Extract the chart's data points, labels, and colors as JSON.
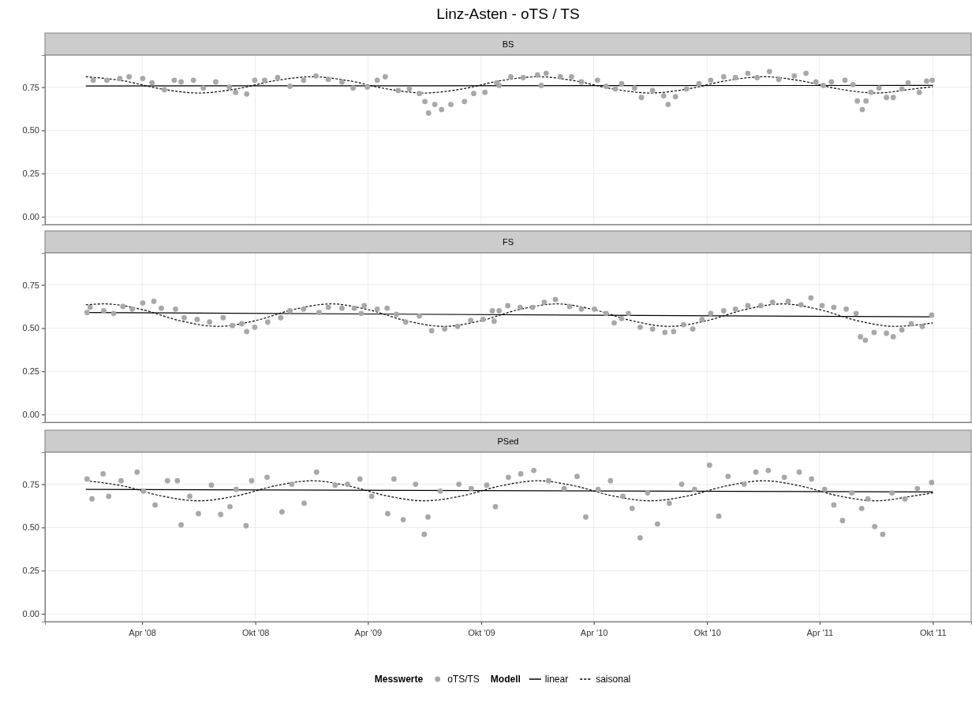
{
  "chart_data": [
    {
      "type": "scatter",
      "title": "Linz-Asten - oTS / TS",
      "subtitle": "BS",
      "xlim": [
        "2007-10-27",
        "2011-12-02"
      ],
      "xticks": [
        {
          "value": "2008-04-01",
          "label": null
        },
        {
          "value": "2008-10-01",
          "label": null
        },
        {
          "value": "2009-04-01",
          "label": null
        },
        {
          "value": "2009-10-01",
          "label": null
        },
        {
          "value": "2010-04-01",
          "label": null
        },
        {
          "value": "2010-10-01",
          "label": null
        },
        {
          "value": "2011-04-01",
          "label": null
        },
        {
          "value": "2011-10-01",
          "label": null
        }
      ],
      "ylim": [
        -0.045,
        0.935
      ],
      "yticks": [
        {
          "value": 0,
          "label": "0.00"
        },
        {
          "value": 0.25,
          "label": "0.25"
        },
        {
          "value": 0.5,
          "label": "0.50"
        },
        {
          "value": 0.75,
          "label": "0.75"
        }
      ],
      "grid": true,
      "tick_labels": "y",
      "series": [
        {
          "marker": "circle",
          "color": "#a8a8a8",
          "x": [
            "2008-01-13",
            "2008-02-04",
            "2008-02-25",
            "2008-03-11",
            "2008-04-02",
            "2008-04-17",
            "2008-05-07",
            "2008-05-23",
            "2008-06-03",
            "2008-06-23",
            "2008-07-09",
            "2008-07-29",
            "2008-08-20",
            "2008-08-30",
            "2008-09-17",
            "2008-09-30",
            "2008-10-16",
            "2008-11-06",
            "2008-11-26",
            "2008-12-18",
            "2009-01-07",
            "2009-01-27",
            "2009-02-18",
            "2009-03-08",
            "2009-03-31",
            "2009-04-16",
            "2009-04-29",
            "2009-05-20",
            "2009-06-07",
            "2009-06-23",
            "2009-07-02",
            "2009-07-08",
            "2009-07-18",
            "2009-07-29",
            "2009-08-13",
            "2009-09-04",
            "2009-09-19",
            "2009-10-07",
            "2009-10-26",
            "2009-10-30",
            "2009-11-18",
            "2009-12-08",
            "2009-12-31",
            "2010-01-06",
            "2010-01-14",
            "2010-02-06",
            "2010-02-24",
            "2010-03-12",
            "2010-04-07",
            "2010-04-21",
            "2010-05-06",
            "2010-05-16",
            "2010-06-06",
            "2010-06-17",
            "2010-07-05",
            "2010-07-23",
            "2010-07-30",
            "2010-08-11",
            "2010-08-29",
            "2010-09-18",
            "2010-10-07",
            "2010-10-28",
            "2010-11-16",
            "2010-12-06",
            "2010-12-21",
            "2011-01-10",
            "2011-01-25",
            "2011-02-19",
            "2011-03-10",
            "2011-03-26",
            "2011-04-07",
            "2011-04-20",
            "2011-05-12",
            "2011-05-25",
            "2011-06-01",
            "2011-06-09",
            "2011-06-15",
            "2011-06-23",
            "2011-07-06",
            "2011-07-18",
            "2011-07-29",
            "2011-08-12",
            "2011-08-22",
            "2011-09-09",
            "2011-09-21",
            "2011-09-30"
          ],
          "values": [
            0.79,
            0.79,
            0.8,
            0.81,
            0.8,
            0.775,
            0.735,
            0.79,
            0.78,
            0.79,
            0.745,
            0.78,
            0.75,
            0.72,
            0.71,
            0.79,
            0.79,
            0.805,
            0.755,
            0.79,
            0.815,
            0.795,
            0.78,
            0.745,
            0.75,
            0.79,
            0.81,
            0.73,
            0.74,
            0.713,
            0.667,
            0.6,
            0.65,
            0.62,
            0.65,
            0.667,
            0.713,
            0.72,
            0.775,
            0.76,
            0.81,
            0.805,
            0.82,
            0.76,
            0.83,
            0.81,
            0.81,
            0.78,
            0.79,
            0.755,
            0.74,
            0.77,
            0.745,
            0.69,
            0.73,
            0.7,
            0.65,
            0.695,
            0.74,
            0.77,
            0.79,
            0.81,
            0.805,
            0.83,
            0.805,
            0.84,
            0.795,
            0.815,
            0.83,
            0.78,
            0.76,
            0.78,
            0.79,
            0.765,
            0.67,
            0.62,
            0.67,
            0.72,
            0.745,
            0.69,
            0.69,
            0.74,
            0.775,
            0.72,
            0.785,
            0.79
          ]
        },
        {
          "type": "line",
          "color": "#000000",
          "line_style": "solid",
          "x": [
            "2008-01-01",
            "2011-10-01"
          ],
          "values": [
            0.757,
            0.76
          ]
        },
        {
          "type": "line",
          "color": "#000000",
          "line_style": "dashed",
          "x": [
            "2008-01-01",
            "2008-03-01",
            "2008-05-01",
            "2008-07-01",
            "2008-09-01",
            "2008-11-01",
            "2009-01-01",
            "2009-03-01",
            "2009-05-01",
            "2009-07-01",
            "2009-09-01",
            "2009-11-01",
            "2010-01-01",
            "2010-03-01",
            "2010-05-01",
            "2010-07-01",
            "2010-09-01",
            "2010-11-01",
            "2011-01-01",
            "2011-03-01",
            "2011-05-01",
            "2011-07-01",
            "2011-09-01",
            "2011-10-01"
          ],
          "values": [
            0.81,
            0.787,
            0.74,
            0.716,
            0.74,
            0.787,
            0.81,
            0.787,
            0.74,
            0.716,
            0.74,
            0.787,
            0.81,
            0.787,
            0.74,
            0.716,
            0.74,
            0.787,
            0.81,
            0.787,
            0.74,
            0.716,
            0.74,
            0.752
          ]
        }
      ]
    },
    {
      "type": "scatter",
      "subtitle": "FS",
      "xlim": [
        "2007-10-27",
        "2011-12-02"
      ],
      "xticks": [
        {
          "value": "2008-04-01",
          "label": null
        },
        {
          "value": "2008-10-01",
          "label": null
        },
        {
          "value": "2009-04-01",
          "label": null
        },
        {
          "value": "2009-10-01",
          "label": null
        },
        {
          "value": "2010-04-01",
          "label": null
        },
        {
          "value": "2010-10-01",
          "label": null
        },
        {
          "value": "2011-04-01",
          "label": null
        },
        {
          "value": "2011-10-01",
          "label": null
        }
      ],
      "ylim": [
        -0.045,
        0.935
      ],
      "yticks": [
        {
          "value": 0,
          "label": "0.00"
        },
        {
          "value": 0.25,
          "label": "0.25"
        },
        {
          "value": 0.5,
          "label": "0.50"
        },
        {
          "value": 0.75,
          "label": "0.75"
        }
      ],
      "grid": true,
      "tick_labels": "y",
      "series": [
        {
          "marker": "circle",
          "color": "#a8a8a8",
          "x": [
            "2008-01-03",
            "2008-01-08",
            "2008-01-30",
            "2008-02-15",
            "2008-03-01",
            "2008-03-16",
            "2008-04-02",
            "2008-04-20",
            "2008-05-02",
            "2008-05-25",
            "2008-06-08",
            "2008-06-29",
            "2008-07-19",
            "2008-08-10",
            "2008-08-25",
            "2008-09-09",
            "2008-09-17",
            "2008-09-30",
            "2008-10-21",
            "2008-11-11",
            "2008-11-26",
            "2008-12-18",
            "2009-01-12",
            "2009-01-27",
            "2009-02-18",
            "2009-03-10",
            "2009-03-21",
            "2009-03-26",
            "2009-04-16",
            "2009-05-02",
            "2009-05-17",
            "2009-06-01",
            "2009-06-23",
            "2009-07-13",
            "2009-08-03",
            "2009-08-24",
            "2009-09-14",
            "2009-10-04",
            "2009-10-19",
            "2009-10-22",
            "2009-10-30",
            "2009-11-13",
            "2009-12-03",
            "2009-12-23",
            "2010-01-11",
            "2010-01-29",
            "2010-02-21",
            "2010-03-12",
            "2010-04-02",
            "2010-04-21",
            "2010-05-04",
            "2010-05-16",
            "2010-05-27",
            "2010-06-15",
            "2010-07-05",
            "2010-07-25",
            "2010-08-08",
            "2010-08-24",
            "2010-09-08",
            "2010-09-23",
            "2010-10-07",
            "2010-10-28",
            "2010-11-16",
            "2010-12-06",
            "2010-12-27",
            "2011-01-15",
            "2011-02-09",
            "2011-03-02",
            "2011-03-18",
            "2011-04-05",
            "2011-04-24",
            "2011-05-14",
            "2011-05-30",
            "2011-06-06",
            "2011-06-14",
            "2011-06-28",
            "2011-07-18",
            "2011-07-29",
            "2011-08-12",
            "2011-08-27",
            "2011-09-14",
            "2011-09-29"
          ],
          "values": [
            0.59,
            0.62,
            0.6,
            0.585,
            0.625,
            0.61,
            0.645,
            0.655,
            0.615,
            0.61,
            0.56,
            0.55,
            0.535,
            0.56,
            0.515,
            0.525,
            0.48,
            0.505,
            0.535,
            0.56,
            0.6,
            0.61,
            0.59,
            0.62,
            0.615,
            0.615,
            0.585,
            0.63,
            0.61,
            0.615,
            0.58,
            0.535,
            0.57,
            0.485,
            0.495,
            0.51,
            0.545,
            0.55,
            0.6,
            0.54,
            0.6,
            0.63,
            0.62,
            0.62,
            0.65,
            0.665,
            0.625,
            0.61,
            0.61,
            0.585,
            0.53,
            0.555,
            0.585,
            0.505,
            0.495,
            0.475,
            0.48,
            0.52,
            0.495,
            0.55,
            0.585,
            0.6,
            0.61,
            0.63,
            0.63,
            0.65,
            0.655,
            0.635,
            0.675,
            0.63,
            0.62,
            0.61,
            0.585,
            0.45,
            0.43,
            0.475,
            0.47,
            0.45,
            0.49,
            0.525,
            0.51,
            0.575
          ]
        },
        {
          "type": "line",
          "color": "#000000",
          "line_style": "solid",
          "x": [
            "2008-01-01",
            "2011-10-01"
          ],
          "values": [
            0.59,
            0.565
          ]
        },
        {
          "type": "line",
          "color": "#000000",
          "line_style": "dashed",
          "x": [
            "2008-01-01",
            "2008-02-01",
            "2008-04-01",
            "2008-06-01",
            "2008-08-01",
            "2008-10-01",
            "2008-12-01",
            "2009-02-01",
            "2009-04-01",
            "2009-06-01",
            "2009-08-01",
            "2009-10-01",
            "2009-12-01",
            "2010-02-01",
            "2010-04-01",
            "2010-06-01",
            "2010-08-01",
            "2010-10-01",
            "2010-12-01",
            "2011-02-01",
            "2011-04-01",
            "2011-06-01",
            "2011-08-01",
            "2011-10-01"
          ],
          "values": [
            0.635,
            0.64,
            0.607,
            0.543,
            0.51,
            0.543,
            0.607,
            0.64,
            0.607,
            0.543,
            0.51,
            0.543,
            0.607,
            0.64,
            0.607,
            0.543,
            0.51,
            0.543,
            0.607,
            0.64,
            0.607,
            0.543,
            0.51,
            0.53
          ]
        }
      ]
    },
    {
      "type": "scatter",
      "subtitle": "PSed",
      "xlim": [
        "2007-10-27",
        "2011-12-02"
      ],
      "xticks": [
        {
          "value": "2008-04-01",
          "label": "Apr '08"
        },
        {
          "value": "2008-10-01",
          "label": "Okt '08"
        },
        {
          "value": "2009-04-01",
          "label": "Apr '09"
        },
        {
          "value": "2009-10-01",
          "label": "Okt '09"
        },
        {
          "value": "2010-04-01",
          "label": "Apr '10"
        },
        {
          "value": "2010-10-01",
          "label": "Okt '10"
        },
        {
          "value": "2011-04-01",
          "label": "Apr '11"
        },
        {
          "value": "2011-10-01",
          "label": "Okt '11"
        }
      ],
      "ylim": [
        -0.045,
        0.935
      ],
      "yticks": [
        {
          "value": 0,
          "label": "0.00"
        },
        {
          "value": 0.25,
          "label": "0.25"
        },
        {
          "value": 0.5,
          "label": "0.50"
        },
        {
          "value": 0.75,
          "label": "0.75"
        }
      ],
      "grid": true,
      "legend": "bottom",
      "legend_title": "Messwerte",
      "annotations": [
        "Modell"
      ],
      "series": [
        {
          "marker": "circle",
          "name": "oTS/TS",
          "color": "#a8a8a8",
          "x": [
            "2008-01-03",
            "2008-01-11",
            "2008-01-29",
            "2008-02-07",
            "2008-02-27",
            "2008-03-24",
            "2008-04-03",
            "2008-04-22",
            "2008-05-12",
            "2008-05-28",
            "2008-06-03",
            "2008-06-17",
            "2008-07-01",
            "2008-07-22",
            "2008-08-06",
            "2008-08-21",
            "2008-08-31",
            "2008-09-16",
            "2008-09-25",
            "2008-10-20",
            "2008-11-13",
            "2008-11-29",
            "2008-12-19",
            "2009-01-08",
            "2009-02-07",
            "2009-02-27",
            "2009-03-19",
            "2009-04-07",
            "2009-05-03",
            "2009-05-13",
            "2009-05-28",
            "2009-06-17",
            "2009-07-01",
            "2009-07-07",
            "2009-07-27",
            "2009-08-26",
            "2009-09-15",
            "2009-10-10",
            "2009-10-24",
            "2009-11-14",
            "2009-12-04",
            "2009-12-25",
            "2010-01-18",
            "2010-02-12",
            "2010-03-05",
            "2010-03-19",
            "2010-04-08",
            "2010-04-28",
            "2010-05-18",
            "2010-06-02",
            "2010-06-15",
            "2010-06-27",
            "2010-07-13",
            "2010-08-01",
            "2010-08-21",
            "2010-09-11",
            "2010-10-05",
            "2010-10-20",
            "2010-11-04",
            "2010-11-30",
            "2010-12-19",
            "2011-01-08",
            "2011-02-03",
            "2011-02-27",
            "2011-03-19",
            "2011-04-09",
            "2011-04-24",
            "2011-05-08",
            "2011-05-23",
            "2011-06-08",
            "2011-06-18",
            "2011-06-29",
            "2011-07-12",
            "2011-07-27",
            "2011-08-17",
            "2011-09-06",
            "2011-09-29"
          ],
          "values": [
            0.78,
            0.665,
            0.81,
            0.68,
            0.77,
            0.82,
            0.71,
            0.63,
            0.77,
            0.77,
            0.515,
            0.68,
            0.58,
            0.745,
            0.575,
            0.62,
            0.72,
            0.51,
            0.77,
            0.79,
            0.59,
            0.75,
            0.64,
            0.82,
            0.745,
            0.75,
            0.78,
            0.68,
            0.58,
            0.78,
            0.545,
            0.75,
            0.46,
            0.56,
            0.71,
            0.75,
            0.725,
            0.745,
            0.62,
            0.79,
            0.81,
            0.83,
            0.77,
            0.725,
            0.795,
            0.56,
            0.72,
            0.77,
            0.68,
            0.61,
            0.44,
            0.7,
            0.52,
            0.64,
            0.75,
            0.72,
            0.86,
            0.565,
            0.795,
            0.75,
            0.82,
            0.83,
            0.79,
            0.82,
            0.78,
            0.72,
            0.63,
            0.54,
            0.7,
            0.61,
            0.665,
            0.505,
            0.46,
            0.7,
            0.665,
            0.725,
            0.76
          ]
        },
        {
          "type": "line",
          "name": "linear",
          "color": "#000000",
          "line_style": "solid",
          "x": [
            "2008-01-01",
            "2011-10-01"
          ],
          "values": [
            0.72,
            0.705
          ]
        },
        {
          "type": "line",
          "name": "saisonal",
          "color": "#000000",
          "line_style": "dashed",
          "x": [
            "2008-01-01",
            "2008-03-01",
            "2008-05-01",
            "2008-07-01",
            "2008-09-01",
            "2008-11-01",
            "2009-01-01",
            "2009-03-01",
            "2009-05-01",
            "2009-07-01",
            "2009-09-01",
            "2009-11-01",
            "2010-01-01",
            "2010-03-01",
            "2010-05-01",
            "2010-07-01",
            "2010-09-01",
            "2010-11-01",
            "2011-01-01",
            "2011-03-01",
            "2011-05-01",
            "2011-07-01",
            "2011-09-01",
            "2011-10-01"
          ],
          "values": [
            0.77,
            0.74,
            0.683,
            0.654,
            0.683,
            0.74,
            0.77,
            0.74,
            0.683,
            0.654,
            0.683,
            0.74,
            0.77,
            0.74,
            0.683,
            0.654,
            0.683,
            0.74,
            0.77,
            0.74,
            0.683,
            0.654,
            0.683,
            0.7
          ]
        }
      ]
    }
  ]
}
